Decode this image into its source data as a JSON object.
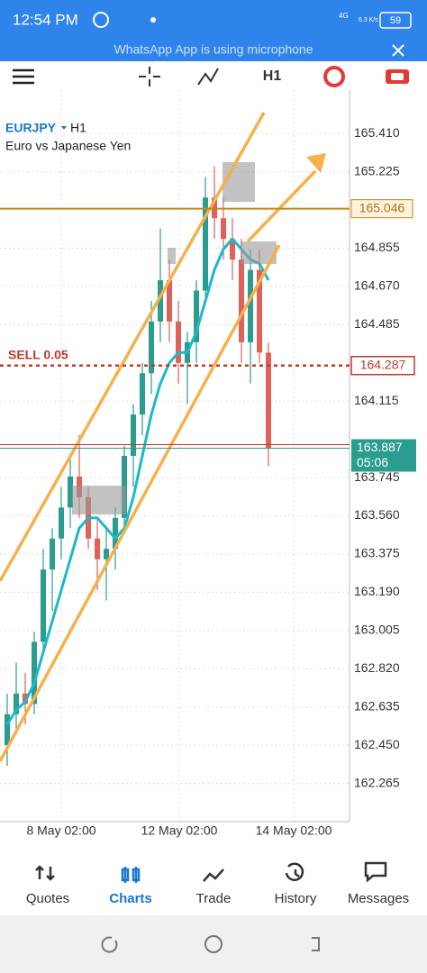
{
  "status_bar": {
    "time": "12:54 PM",
    "network": "4G",
    "speed": "6.3 K/s",
    "battery": "59",
    "notice": "WhatsApp App is using microphone"
  },
  "toolbar": {
    "timeframe": "H1"
  },
  "chart_data": {
    "type": "candlestick",
    "symbol": "EURJPY",
    "timeframe": "H1",
    "description": "Euro vs Japanese Yen",
    "ylim": [
      162.08,
      165.62
    ],
    "yticks": [
      {
        "value": 165.41,
        "label": "165.410"
      },
      165.225,
      164.855,
      {
        "value": 164.67,
        "label": "164.670"
      },
      164.485,
      164.115,
      163.745,
      {
        "value": 163.56,
        "label": "163.560"
      },
      163.375,
      {
        "value": 163.19,
        "label": "163.190"
      },
      163.005,
      {
        "value": 162.82,
        "label": "162.820"
      },
      162.635,
      {
        "value": 162.45,
        "label": "162.450"
      },
      162.265
    ],
    "x_labels": [
      "8 May 02:00",
      "12 May 02:00",
      "14 May 02:00"
    ],
    "up_color": "#2a9d8f",
    "down_color": "#e0605a",
    "ma_color": "#1fb8c9",
    "candles": [
      [
        162.45,
        162.7,
        162.35,
        162.6
      ],
      [
        162.6,
        162.85,
        162.5,
        162.7
      ],
      [
        162.7,
        162.8,
        162.55,
        162.65
      ],
      [
        162.65,
        163.0,
        162.6,
        162.95
      ],
      [
        162.95,
        163.4,
        162.9,
        163.3
      ],
      [
        163.3,
        163.5,
        163.1,
        163.45
      ],
      [
        163.45,
        163.7,
        163.35,
        163.6
      ],
      [
        163.6,
        163.85,
        163.5,
        163.75
      ],
      [
        163.75,
        163.95,
        163.55,
        163.65
      ],
      [
        163.65,
        163.7,
        163.4,
        163.45
      ],
      [
        163.45,
        163.55,
        163.2,
        163.35
      ],
      [
        163.35,
        163.5,
        163.15,
        163.4
      ],
      [
        163.4,
        163.6,
        163.3,
        163.55
      ],
      [
        163.55,
        163.9,
        163.5,
        163.85
      ],
      [
        163.85,
        164.1,
        163.7,
        164.05
      ],
      [
        164.05,
        164.3,
        163.95,
        164.25
      ],
      [
        164.25,
        164.6,
        164.15,
        164.5
      ],
      [
        164.5,
        164.95,
        164.4,
        164.7
      ],
      [
        164.7,
        164.8,
        164.4,
        164.5
      ],
      [
        164.5,
        164.6,
        164.2,
        164.3
      ],
      [
        164.3,
        164.45,
        164.1,
        164.4
      ],
      [
        164.4,
        164.7,
        164.3,
        164.65
      ],
      [
        164.65,
        165.2,
        164.6,
        165.1
      ],
      [
        165.1,
        165.25,
        164.9,
        165.0
      ],
      [
        165.0,
        165.1,
        164.8,
        164.9
      ],
      [
        164.9,
        165.0,
        164.7,
        164.8
      ],
      [
        164.8,
        164.9,
        164.3,
        164.4
      ],
      [
        164.4,
        164.85,
        164.2,
        164.75
      ],
      [
        164.75,
        164.85,
        164.3,
        164.35
      ],
      [
        164.35,
        164.4,
        163.8,
        163.887
      ]
    ],
    "ma": [
      162.55,
      162.62,
      162.66,
      162.75,
      162.9,
      163.05,
      163.2,
      163.35,
      163.5,
      163.55,
      163.55,
      163.5,
      163.45,
      163.5,
      163.65,
      163.85,
      164.05,
      164.2,
      164.3,
      164.35,
      164.35,
      164.45,
      164.6,
      164.75,
      164.85,
      164.9,
      164.85,
      164.8,
      164.78,
      164.7
    ],
    "level": 165.046,
    "order": {
      "label": "SELL 0.05",
      "price": 164.287
    },
    "bid": 163.887,
    "countdown": "05:06"
  },
  "nav": {
    "items": [
      "Quotes",
      "Charts",
      "Trade",
      "History",
      "Messages"
    ],
    "active": 1
  }
}
